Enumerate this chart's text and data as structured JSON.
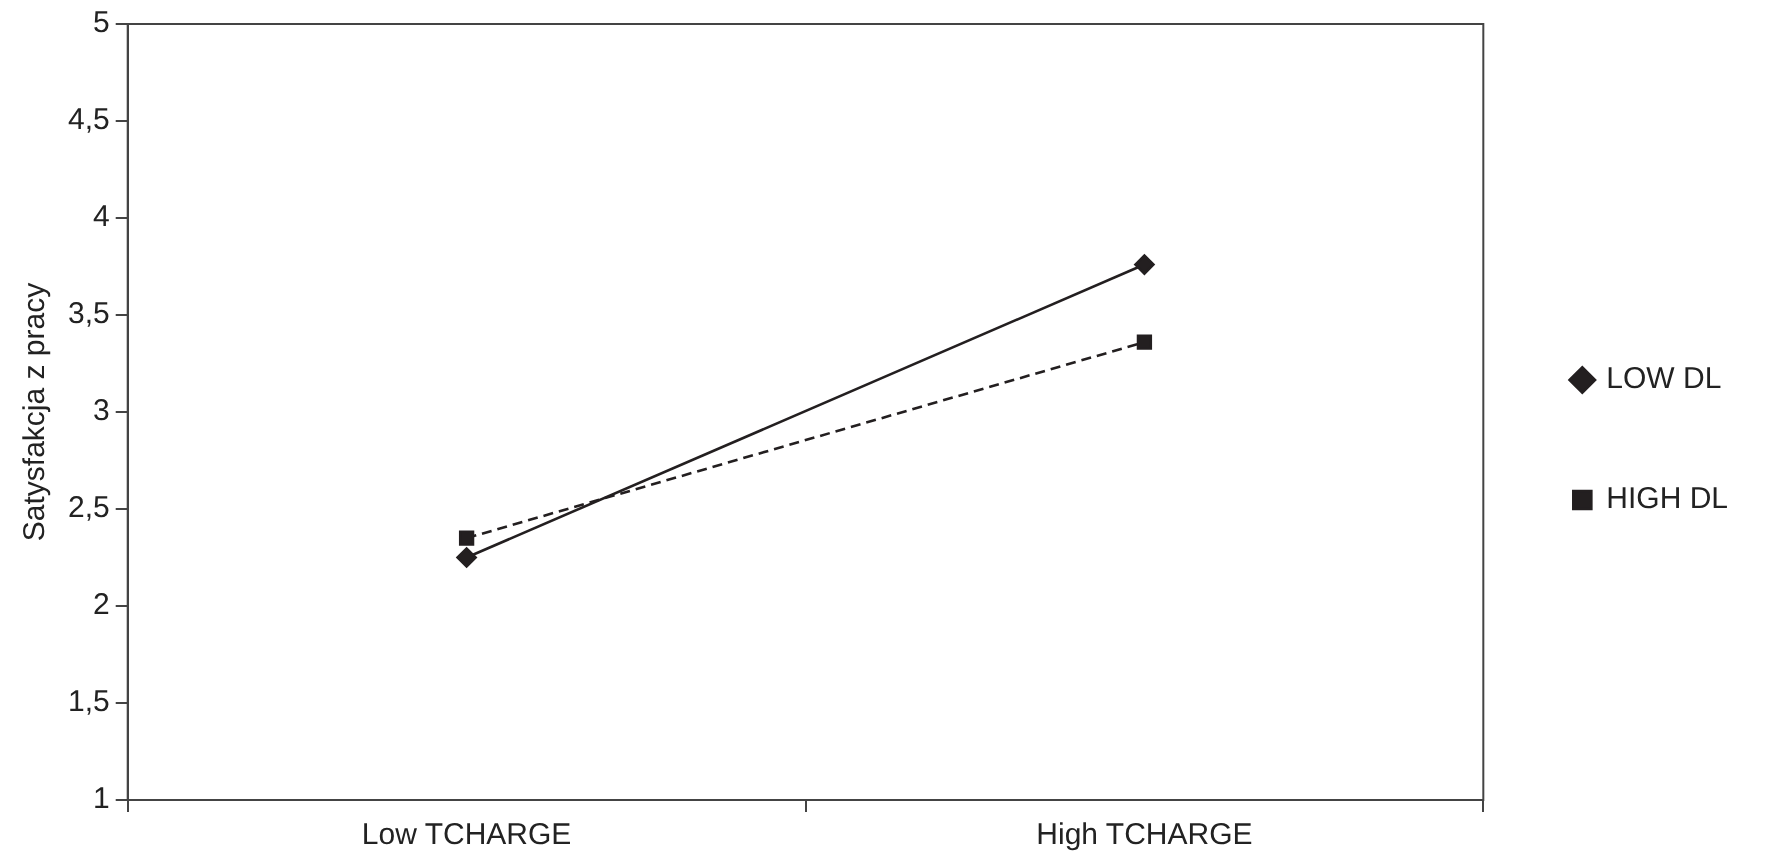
{
  "chart_data": {
    "type": "line",
    "ylabel": "Satysfakcja z pracy",
    "categories": [
      "Low TCHARGE",
      "High TCHARGE"
    ],
    "series": [
      {
        "name": "LOW DL",
        "color": "#231f20",
        "values": [
          2.25,
          3.76
        ],
        "marker": "diamond",
        "line_style": "solid"
      },
      {
        "name": "HIGH DL",
        "color": "#231f20",
        "values": [
          2.35,
          3.36
        ],
        "marker": "square",
        "line_style": "dashed"
      }
    ],
    "ylim": [
      1,
      5
    ],
    "yticks": [
      1,
      {
        "value": 1.5,
        "label": "1,5"
      },
      2,
      {
        "value": 2.5,
        "label": "2,5"
      },
      3,
      {
        "value": 3.5,
        "label": "3,5"
      },
      4,
      {
        "value": 4.5,
        "label": "4,5"
      },
      5
    ],
    "grid": false,
    "legend": "right"
  }
}
